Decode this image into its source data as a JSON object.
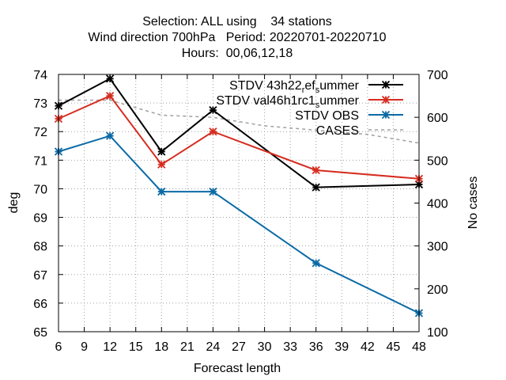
{
  "chart_data": {
    "type": "line",
    "title_lines": [
      "Selection: ALL using    34 stations",
      "Wind direction 700hPa   Period: 20220701-20220710",
      "Hours:  00,06,12,18"
    ],
    "xlabel": "Forecast length",
    "ylabel": "deg",
    "y2label": "No cases",
    "xlim": [
      6,
      48
    ],
    "ylim": [
      65,
      74
    ],
    "y2lim": [
      100,
      700
    ],
    "xticks": [
      6,
      9,
      12,
      15,
      18,
      21,
      24,
      27,
      30,
      33,
      36,
      39,
      42,
      45,
      48
    ],
    "yticks": [
      65,
      66,
      67,
      68,
      69,
      70,
      71,
      72,
      73,
      74
    ],
    "y2ticks": [
      100,
      200,
      300,
      400,
      500,
      600,
      700
    ],
    "grid": true,
    "legend_position": "top-right",
    "series": [
      {
        "name": "STDV 43h22_ref_summer",
        "name_parts": [
          {
            "t": "STDV 43h22"
          },
          {
            "t": "r",
            "sub": true
          },
          {
            "t": "ef"
          },
          {
            "t": "s",
            "sub": true
          },
          {
            "t": "ummer"
          }
        ],
        "axis": "y1",
        "color": "#000000",
        "marker": "star",
        "dashed": false,
        "x": [
          6,
          12,
          18,
          24,
          36,
          48
        ],
        "values": [
          72.9,
          73.85,
          71.3,
          72.75,
          70.05,
          70.15
        ]
      },
      {
        "name": "STDV val46h1rc1_summer",
        "name_parts": [
          {
            "t": "STDV val46h1rc1"
          },
          {
            "t": "s",
            "sub": true
          },
          {
            "t": "ummer"
          }
        ],
        "axis": "y1",
        "color": "#d62d20",
        "marker": "star",
        "dashed": false,
        "x": [
          6,
          12,
          18,
          24,
          36,
          48
        ],
        "values": [
          72.45,
          73.25,
          70.85,
          72.0,
          70.65,
          70.35
        ]
      },
      {
        "name": "STDV OBS",
        "name_parts": [
          {
            "t": "STDV OBS"
          }
        ],
        "axis": "y1",
        "color": "#0a6aa6",
        "marker": "star",
        "dashed": false,
        "x": [
          6,
          12,
          18,
          24,
          36,
          48
        ],
        "values": [
          71.3,
          71.85,
          69.9,
          69.9,
          67.4,
          65.65
        ]
      },
      {
        "name": "CASES",
        "name_parts": [
          {
            "t": "CASES"
          }
        ],
        "axis": "y2",
        "color": "#a0a0a0",
        "marker": "none",
        "dashed": true,
        "x": [
          6,
          12,
          18,
          24,
          30,
          36,
          42,
          48
        ],
        "values": [
          640,
          640,
          605,
          600,
          580,
          570,
          560,
          540
        ]
      }
    ]
  }
}
